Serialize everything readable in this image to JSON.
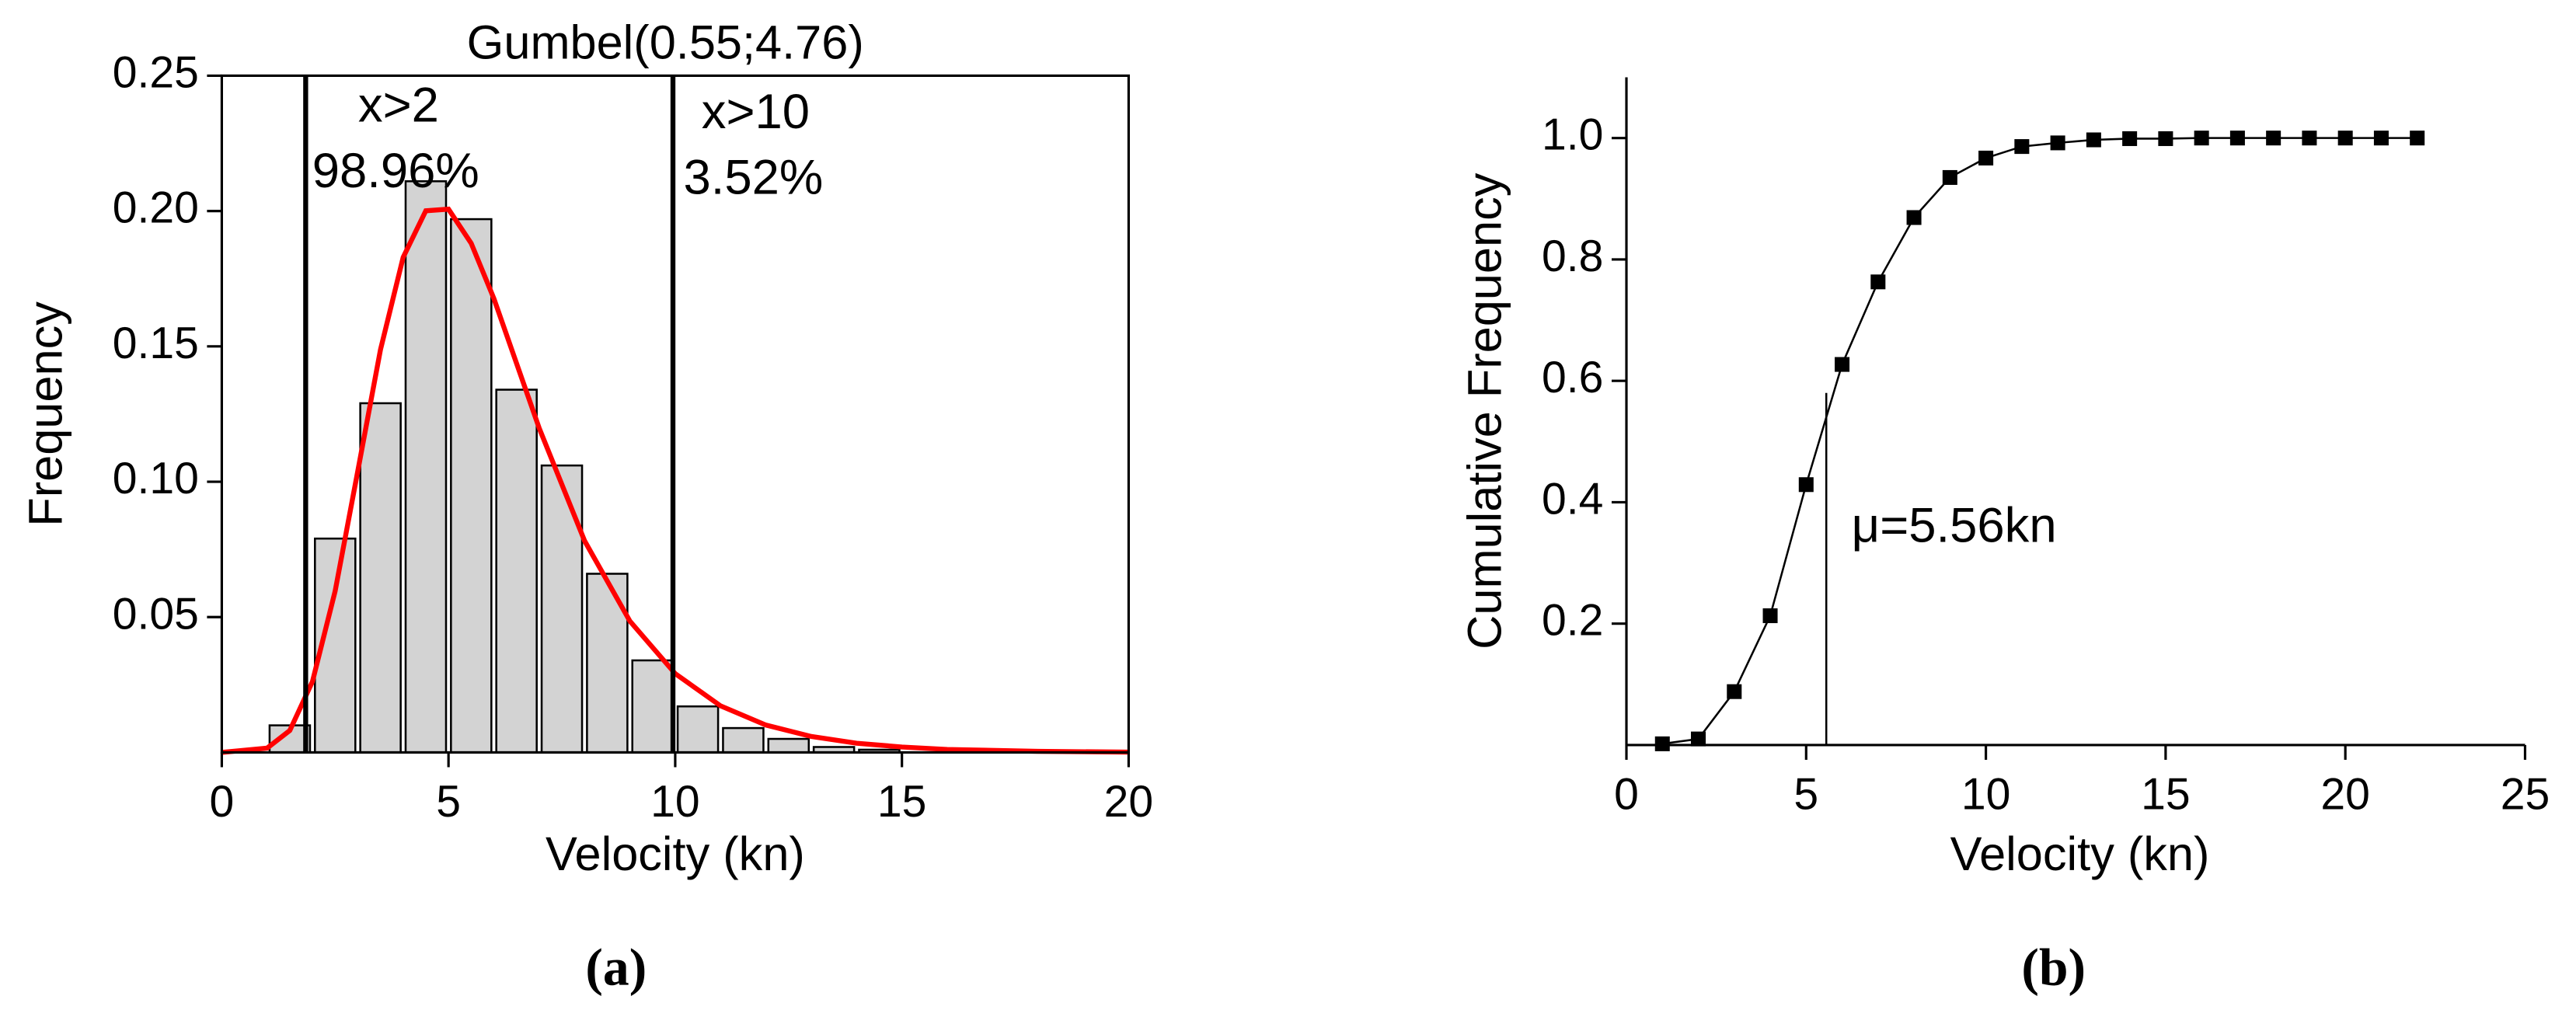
{
  "chart_data": [
    {
      "type": "histogram",
      "title": "Gumbel(0.55;4.76)",
      "xlabel": "Velocity (kn)",
      "ylabel": "Frequency",
      "caption": "(a)",
      "bins": [
        1,
        2,
        3,
        4,
        5,
        6,
        7,
        8,
        9,
        10,
        11,
        12,
        13,
        14,
        15
      ],
      "values": [
        0.01,
        0.079,
        0.129,
        0.211,
        0.197,
        0.134,
        0.106,
        0.066,
        0.034,
        0.017,
        0.009,
        0.005,
        0.002,
        0.001
      ],
      "color": "#d3d3d3",
      "curve": {
        "color": "#ff0000",
        "x": [
          0,
          1,
          1.5,
          2,
          2.5,
          3,
          3.5,
          4,
          4.5,
          5,
          5.5,
          6,
          7,
          8,
          9,
          10,
          11,
          12,
          13,
          14,
          15,
          16,
          18,
          20
        ],
        "values": [
          0,
          0.0016,
          0.0081,
          0.0262,
          0.0596,
          0.104,
          0.1488,
          0.1829,
          0.2001,
          0.2007,
          0.1881,
          0.1677,
          0.1198,
          0.0782,
          0.0485,
          0.0291,
          0.0172,
          0.0101,
          0.0059,
          0.0034,
          0.002,
          0.0011,
          0.0004,
          0.0001
        ]
      },
      "vlines": [
        1.85,
        9.95
      ],
      "annotations": [
        "x>2",
        "98.96%",
        "x>10",
        "3.52%"
      ],
      "xlim": [
        0,
        20
      ],
      "xticks": [
        0,
        5,
        10,
        15,
        20
      ],
      "ylim": [
        0,
        0.25
      ],
      "yticks": [
        0.05,
        {
          "value": 0.1,
          "label": "0.10"
        },
        0.15,
        {
          "value": 0.2,
          "label": "0.20"
        },
        0.25
      ],
      "frame": true
    },
    {
      "type": "line",
      "xlabel": "Velocity (kn)",
      "ylabel": "Cumulative Frequency",
      "caption": "(b)",
      "x": [
        1,
        2,
        3,
        4,
        5,
        6,
        7,
        8,
        9,
        10,
        11,
        12,
        13,
        14,
        15,
        16,
        17,
        18,
        19,
        20,
        21,
        22
      ],
      "values": [
        0.002,
        0.01,
        0.088,
        0.213,
        0.429,
        0.627,
        0.763,
        0.869,
        0.935,
        0.967,
        0.986,
        0.992,
        0.997,
        0.999,
        0.999,
        1,
        1,
        1,
        1,
        1,
        1,
        1
      ],
      "color": "#000000",
      "marker": "square",
      "mean_line": {
        "x": 5.56,
        "top": 0.58
      },
      "annotations": [
        "μ=5.56kn"
      ],
      "xlim": [
        0,
        25
      ],
      "xticks": [
        0,
        5,
        10,
        15,
        20,
        25
      ],
      "ylim": [
        0,
        1.1
      ],
      "yticks": [
        0.2,
        0.4,
        0.6,
        0.8,
        {
          "value": 1,
          "label": "1.0"
        }
      ],
      "frame": false
    }
  ]
}
